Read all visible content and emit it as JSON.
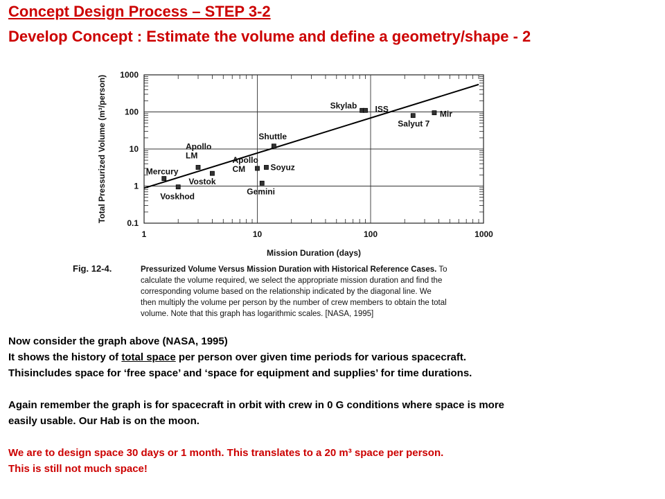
{
  "header": {
    "title": "Concept Design Process – STEP 3-2",
    "subtitle": "Develop Concept : Estimate the volume and define a geometry/shape - 2"
  },
  "chart_data": {
    "type": "scatter",
    "xscale": "log",
    "yscale": "log",
    "xlabel": "Mission Duration (days)",
    "ylabel": "Total Pressurized Volume (m³/person)",
    "xlim": [
      1,
      1000
    ],
    "ylim": [
      0.1,
      1000
    ],
    "x_ticks": [
      "1",
      "10",
      "100",
      "1000"
    ],
    "y_ticks": [
      "1000",
      "100",
      "10",
      "1",
      "0.1"
    ],
    "grid": true,
    "trend_line": {
      "x": [
        1,
        900
      ],
      "y": [
        0.88,
        550
      ]
    },
    "points": [
      {
        "name": "Mercury",
        "x": 1.5,
        "y": 1.6
      },
      {
        "name": "Voskhod",
        "x": 2,
        "y": 0.95
      },
      {
        "name": "Apollo LM",
        "x": 3,
        "y": 3.2
      },
      {
        "name": "Vostok",
        "x": 4,
        "y": 2.2
      },
      {
        "name": "Apollo CM",
        "x": 10,
        "y": 3
      },
      {
        "name": "Soyuz",
        "x": 12,
        "y": 3.2
      },
      {
        "name": "Gemini",
        "x": 11,
        "y": 1.2
      },
      {
        "name": "Shuttle",
        "x": 14,
        "y": 12
      },
      {
        "name": "Skylab",
        "x": 84,
        "y": 110
      },
      {
        "name": "ISS",
        "x": 90,
        "y": 110
      },
      {
        "name": "Salyut 7",
        "x": 237,
        "y": 80
      },
      {
        "name": "Mir",
        "x": 365,
        "y": 95
      }
    ]
  },
  "caption": {
    "fig_label": "Fig. 12-4.",
    "title": "Pressurized Volume Versus Mission Duration with Historical Reference Cases.",
    "lines": [
      "To",
      "calculate the volume required, we select the appropriate mission duration and find the",
      "corresponding volume based on the relationship indicated by the diagonal line. We",
      "then multiply the volume per person by the number of crew members to obtain the total",
      "volume. Note that this graph has logarithmic scales. [NASA, 1995]"
    ]
  },
  "body": {
    "line1": "Now consider the graph above (NASA, 1995)",
    "line2_pre": "It shows the history of ",
    "line2_u": "total space",
    "line2_post": " per person over given time periods for various spacecraft.",
    "line3": "Thisincludes space for ‘free space’ and ‘space for equipment and supplies’ for time durations.",
    "line4": "Again remember the graph is for spacecraft in orbit with crew in 0 G conditions where space is more",
    "line5": "easily usable. Our Hab is on the moon.",
    "red1": "We are to design space 30 days or 1 month. This translates to a 20 m³ space per person.",
    "red2": "This is still not much space!"
  }
}
